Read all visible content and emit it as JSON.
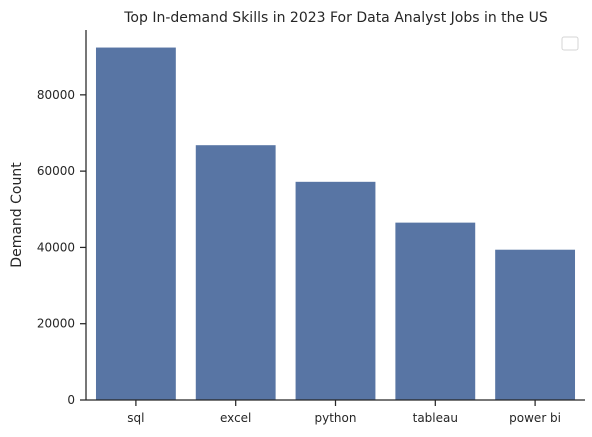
{
  "colors": {
    "bar": "#5875a4",
    "axis": "#262626"
  },
  "chart_data": {
    "type": "bar",
    "title": "Top In-demand Skills in 2023 For Data Analyst Jobs in the US",
    "xlabel": "",
    "ylabel": "Demand Count",
    "categories": [
      "sql",
      "excel",
      "python",
      "tableau",
      "power bi"
    ],
    "values": [
      92400,
      66800,
      57200,
      46500,
      39400
    ],
    "yticks": [
      0,
      20000,
      40000,
      60000,
      80000
    ],
    "ylim": [
      0,
      97000
    ],
    "grid": false,
    "legend": {
      "placement": "top-right",
      "entries": []
    }
  }
}
